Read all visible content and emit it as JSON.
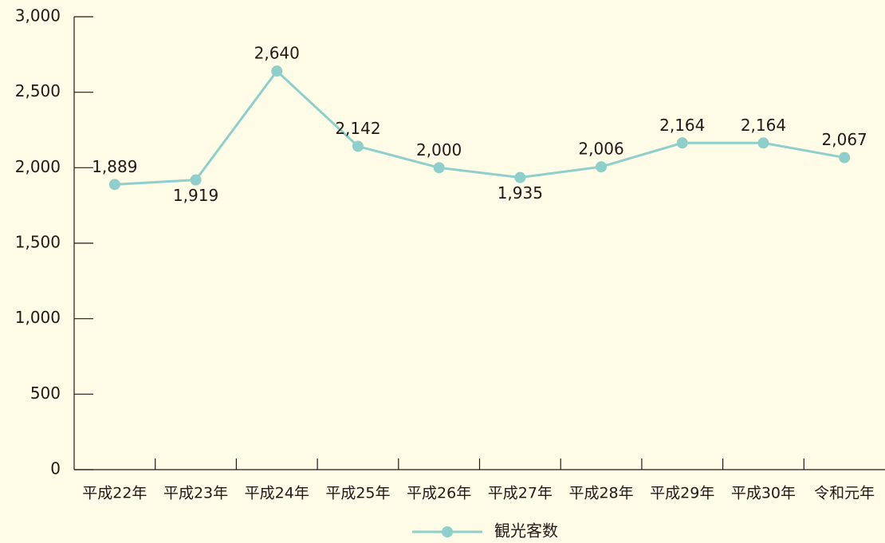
{
  "chart_data": {
    "type": "line",
    "categories": [
      "平成22年",
      "平成23年",
      "平成24年",
      "平成25年",
      "平成26年",
      "平成27年",
      "平成28年",
      "平成29年",
      "平成30年",
      "令和元年"
    ],
    "series": [
      {
        "name": "観光客数",
        "color": "#8ecfcc",
        "values": [
          1889,
          1919,
          2640,
          2142,
          2000,
          1935,
          2006,
          2164,
          2164,
          2067
        ],
        "value_labels": [
          "1,889",
          "1,919",
          "2,640",
          "2,142",
          "2,000",
          "1,935",
          "2,006",
          "2,164",
          "2,164",
          "2,067"
        ]
      }
    ],
    "ylim": [
      0,
      3000
    ],
    "yticks": [
      0,
      {
        "value": 500,
        "label": "500"
      },
      {
        "value": 1000,
        "label": "1,000"
      },
      {
        "value": 1500,
        "label": "1,500"
      },
      {
        "value": 2000,
        "label": "2,000"
      },
      {
        "value": 2500,
        "label": "2,500"
      },
      {
        "value": 3000,
        "label": "3,000"
      }
    ],
    "legend": "bottom"
  }
}
